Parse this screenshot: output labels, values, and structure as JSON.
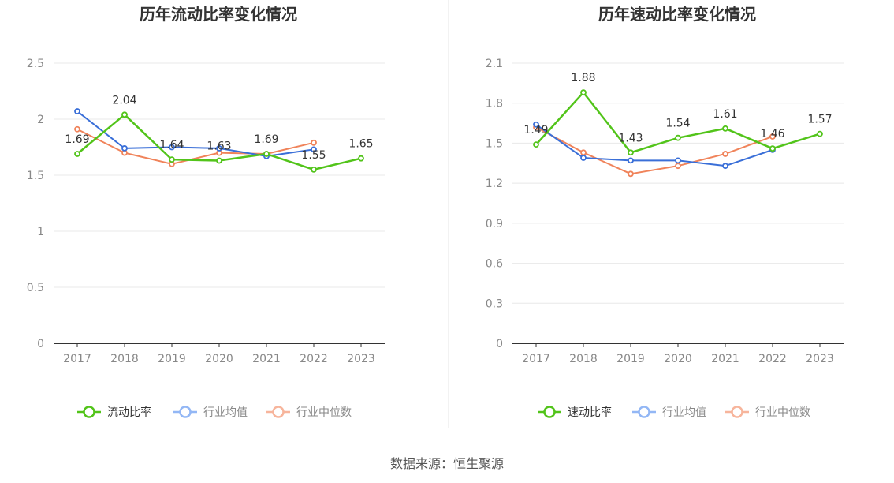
{
  "colors": {
    "primary": "#52c41a",
    "industry_avg": "#3a6fd8",
    "industry_median": "#f0835a",
    "legend_avg": "#93b7f5",
    "legend_median": "#f7b59c",
    "divider": "#e6e6e6"
  },
  "chart_data": [
    {
      "type": "line",
      "title": "历年流动比率变化情况",
      "categories": [
        "2017",
        "2018",
        "2019",
        "2020",
        "2021",
        "2022",
        "2023"
      ],
      "ylim": [
        0,
        2.5
      ],
      "yticks": [
        0,
        0.5,
        1,
        1.5,
        2,
        2.5
      ],
      "ytick_labels": [
        "0",
        "0.5",
        "1",
        "1.5",
        "2",
        "2.5"
      ],
      "series": [
        {
          "name": "流动比率",
          "role": "primary",
          "values": [
            1.69,
            2.04,
            1.64,
            1.63,
            1.69,
            1.55,
            1.65
          ],
          "labels": [
            "1.69",
            "2.04",
            "1.64",
            "1.63",
            "1.69",
            "1.55",
            "1.65"
          ]
        },
        {
          "name": "行业均值",
          "role": "industry_avg",
          "values": [
            2.07,
            1.74,
            1.75,
            1.74,
            1.67,
            1.73,
            null
          ]
        },
        {
          "name": "行业中位数",
          "role": "industry_median",
          "values": [
            1.91,
            1.7,
            1.6,
            1.7,
            1.69,
            1.79,
            null
          ]
        }
      ]
    },
    {
      "type": "line",
      "title": "历年速动比率变化情况",
      "categories": [
        "2017",
        "2018",
        "2019",
        "2020",
        "2021",
        "2022",
        "2023"
      ],
      "ylim": [
        0,
        2.1
      ],
      "yticks": [
        0,
        0.3,
        0.6,
        0.9,
        1.2,
        1.5,
        1.8,
        2.1
      ],
      "ytick_labels": [
        "0",
        "0.3",
        "0.6",
        "0.9",
        "1.2",
        "1.5",
        "1.8",
        "2.1"
      ],
      "series": [
        {
          "name": "速动比率",
          "role": "primary",
          "values": [
            1.49,
            1.88,
            1.43,
            1.54,
            1.61,
            1.46,
            1.57
          ],
          "labels": [
            "1.49",
            "1.88",
            "1.43",
            "1.54",
            "1.61",
            "1.46",
            "1.57"
          ]
        },
        {
          "name": "行业均值",
          "role": "industry_avg",
          "values": [
            1.64,
            1.39,
            1.37,
            1.37,
            1.33,
            1.45,
            null
          ]
        },
        {
          "name": "行业中位数",
          "role": "industry_median",
          "values": [
            1.62,
            1.43,
            1.27,
            1.33,
            1.42,
            1.55,
            null
          ]
        }
      ]
    }
  ],
  "source": "数据来源：恒生聚源"
}
